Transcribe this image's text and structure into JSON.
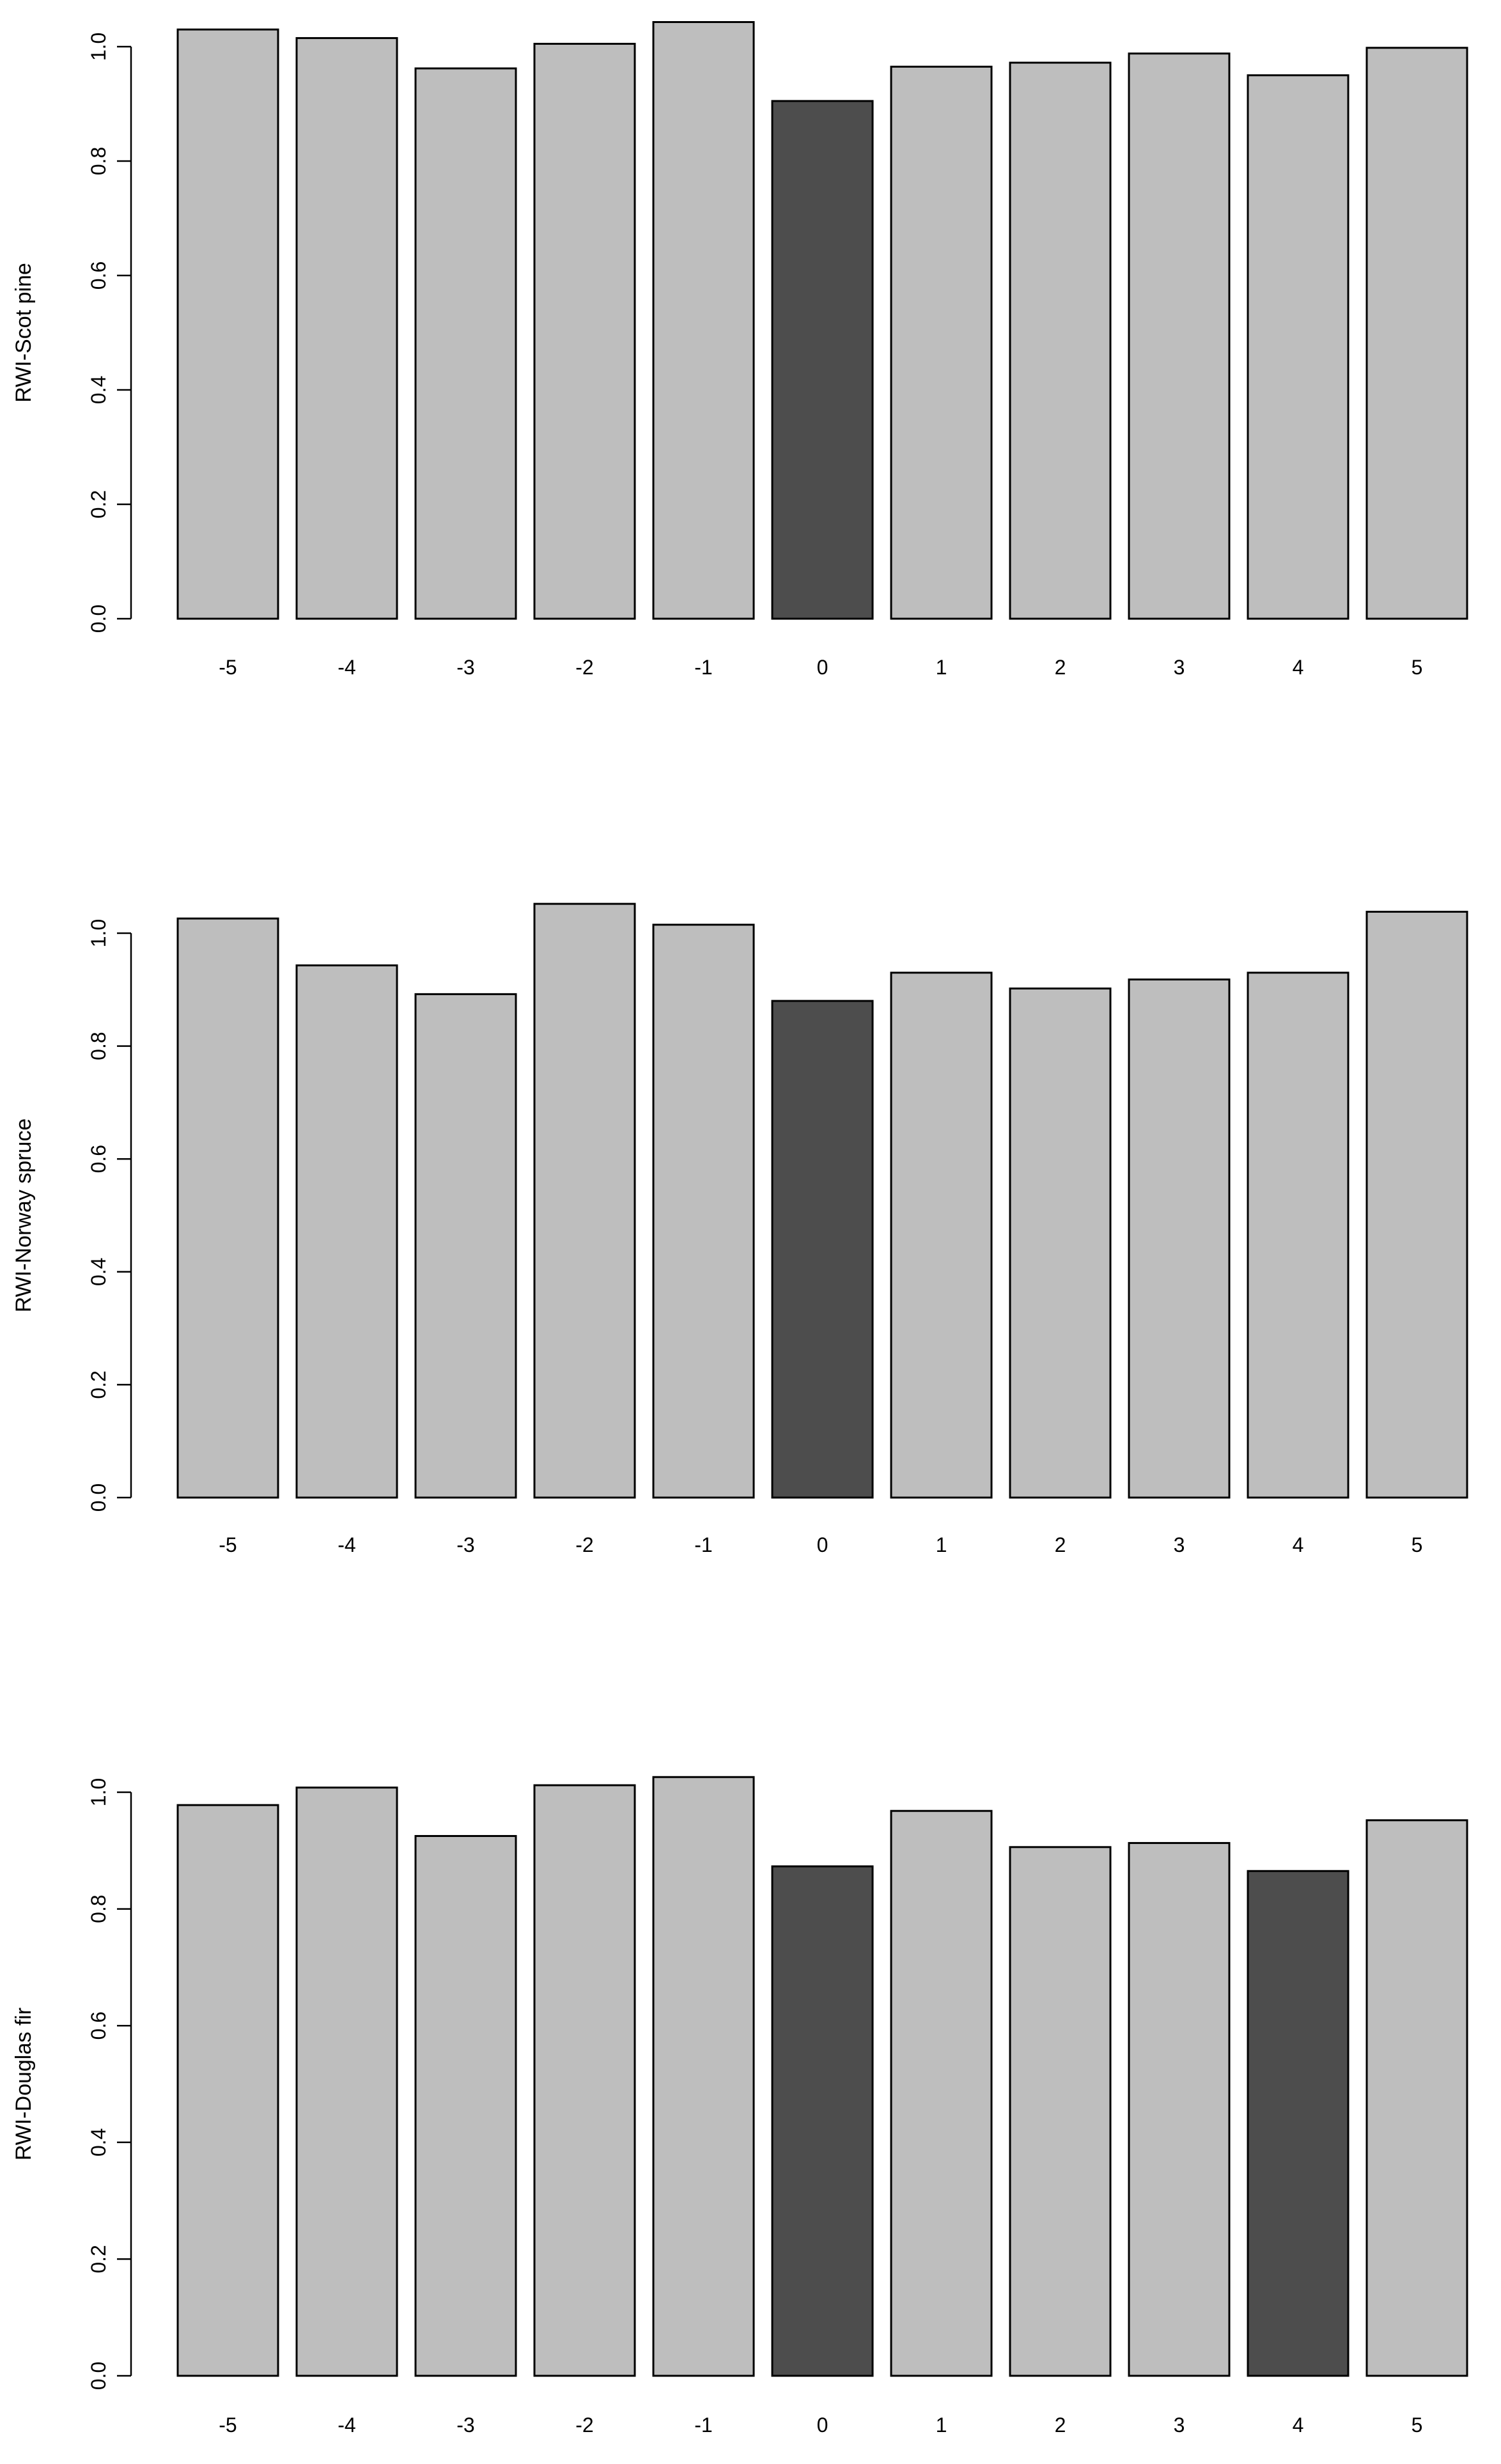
{
  "chart_data": [
    {
      "type": "bar",
      "title": "",
      "xlabel": "",
      "ylabel": "RWI-Scot pine",
      "ylim": [
        0,
        1.05
      ],
      "yticks": [
        "0.0",
        "0.2",
        "0.4",
        "0.6",
        "0.8",
        "1.0"
      ],
      "categories": [
        "-5",
        "-4",
        "-3",
        "-2",
        "-1",
        "0",
        "1",
        "2",
        "3",
        "4",
        "5"
      ],
      "values": [
        1.03,
        1.015,
        0.962,
        1.005,
        1.043,
        0.905,
        0.965,
        0.972,
        0.988,
        0.95,
        0.998
      ],
      "highlight": [
        false,
        false,
        false,
        false,
        false,
        true,
        false,
        false,
        false,
        false,
        false
      ],
      "colors": {
        "normal": "#bebebe",
        "highlight": "#4d4d4d"
      }
    },
    {
      "type": "bar",
      "title": "",
      "xlabel": "",
      "ylabel": "RWI-Norway spruce",
      "ylim": [
        0,
        1.05
      ],
      "yticks": [
        "0.0",
        "0.2",
        "0.4",
        "0.6",
        "0.8",
        "1.0"
      ],
      "categories": [
        "-5",
        "-4",
        "-3",
        "-2",
        "-1",
        "0",
        "1",
        "2",
        "3",
        "4",
        "5"
      ],
      "values": [
        1.026,
        0.943,
        0.892,
        1.052,
        1.015,
        0.88,
        0.93,
        0.902,
        0.918,
        0.93,
        1.038
      ],
      "highlight": [
        false,
        false,
        false,
        false,
        false,
        true,
        false,
        false,
        false,
        false,
        false
      ],
      "colors": {
        "normal": "#bebebe",
        "highlight": "#4d4d4d"
      }
    },
    {
      "type": "bar",
      "title": "",
      "xlabel": "",
      "ylabel": "RWI-Douglas fir",
      "ylim": [
        0,
        1.05
      ],
      "yticks": [
        "0.0",
        "0.2",
        "0.4",
        "0.6",
        "0.8",
        "1.0"
      ],
      "categories": [
        "-5",
        "-4",
        "-3",
        "-2",
        "-1",
        "0",
        "1",
        "2",
        "3",
        "4",
        "5"
      ],
      "values": [
        0.978,
        1.008,
        0.925,
        1.012,
        1.026,
        0.873,
        0.968,
        0.906,
        0.913,
        0.865,
        0.952
      ],
      "highlight": [
        false,
        false,
        false,
        false,
        false,
        true,
        false,
        false,
        false,
        true,
        false
      ],
      "colors": {
        "normal": "#bebebe",
        "highlight": "#4d4d4d"
      }
    }
  ]
}
